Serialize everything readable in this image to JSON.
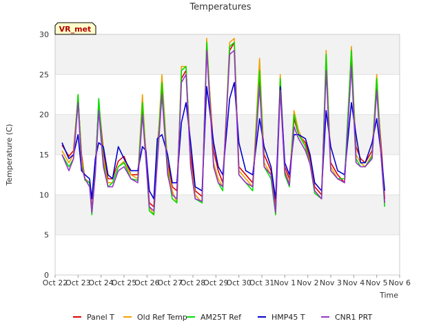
{
  "chart_data": {
    "type": "line",
    "title": "Temperatures",
    "xlabel": "Time",
    "ylabel": "Temperature (C)",
    "badge": "VR_met",
    "ylim": [
      0,
      30
    ],
    "yticks": [
      0,
      5,
      10,
      15,
      20,
      25,
      30
    ],
    "xlim": [
      0,
      15
    ],
    "x_tick_values": [
      0,
      1,
      2,
      3,
      4,
      5,
      6,
      7,
      8,
      9,
      10,
      11,
      12,
      13,
      14,
      15
    ],
    "x_tick_labels": [
      "Oct 22",
      "Oct 23",
      "Oct 24",
      "Oct 25",
      "Oct 26",
      "Oct 27",
      "Oct 28",
      "Oct 29",
      "Oct 30",
      "Oct 31",
      "Nov 1",
      "Nov 2",
      "Nov 3",
      "Nov 4",
      "Nov 5",
      "Nov 6"
    ],
    "grid_bands": true,
    "legend_position": "bottom",
    "x_days": [
      0.3,
      0.6,
      0.8,
      1.0,
      1.15,
      1.3,
      1.5,
      1.6,
      1.75,
      1.9,
      2.1,
      2.3,
      2.5,
      2.75,
      3.0,
      3.3,
      3.6,
      3.8,
      3.95,
      4.1,
      4.3,
      4.45,
      4.65,
      4.9,
      5.1,
      5.3,
      5.5,
      5.7,
      5.9,
      6.1,
      6.4,
      6.6,
      6.9,
      7.1,
      7.3,
      7.6,
      7.8,
      8.0,
      8.3,
      8.6,
      8.9,
      9.1,
      9.4,
      9.6,
      9.8,
      10.0,
      10.2,
      10.4,
      10.6,
      10.9,
      11.1,
      11.3,
      11.6,
      11.8,
      12.0,
      12.3,
      12.6,
      12.9,
      13.1,
      13.3,
      13.5,
      13.8,
      14.0,
      14.2,
      14.35
    ],
    "series": [
      {
        "name": "Panel T",
        "color": "#dd0000",
        "values": [
          16.2,
          14.8,
          15.5,
          22.2,
          15.0,
          12.0,
          11.5,
          8.2,
          13.5,
          21.5,
          15.5,
          12.0,
          12.0,
          14.2,
          14.8,
          12.5,
          12.5,
          21.0,
          15.5,
          9.0,
          8.5,
          16.0,
          23.0,
          14.0,
          11.0,
          10.5,
          24.5,
          25.5,
          15.0,
          10.5,
          9.8,
          28.5,
          15.5,
          13.0,
          11.5,
          28.0,
          29.0,
          13.5,
          12.5,
          11.5,
          24.5,
          15.0,
          13.0,
          8.5,
          24.0,
          13.5,
          12.0,
          19.5,
          17.5,
          16.5,
          14.5,
          11.0,
          10.0,
          26.5,
          14.0,
          12.5,
          11.5,
          26.5,
          16.0,
          14.5,
          14.0,
          15.5,
          23.5,
          16.0,
          9.5
        ]
      },
      {
        "name": "Old Ref Temp",
        "color": "#f0a000",
        "values": [
          15.5,
          14.0,
          15.0,
          22.5,
          14.5,
          12.0,
          11.5,
          7.8,
          13.0,
          21.5,
          14.5,
          11.5,
          11.5,
          13.5,
          14.2,
          12.5,
          12.0,
          22.5,
          15.0,
          8.5,
          7.5,
          15.0,
          25.0,
          13.5,
          10.5,
          9.0,
          26.0,
          26.0,
          14.0,
          10.0,
          9.0,
          29.5,
          14.0,
          12.0,
          11.0,
          29.0,
          29.5,
          13.0,
          12.0,
          11.0,
          27.0,
          14.0,
          12.5,
          8.0,
          25.0,
          13.0,
          11.5,
          20.5,
          18.0,
          16.0,
          14.0,
          10.5,
          9.5,
          28.0,
          13.5,
          12.0,
          11.5,
          28.5,
          15.0,
          14.0,
          13.5,
          15.0,
          25.0,
          15.0,
          9.0
        ]
      },
      {
        "name": "AM25T Ref",
        "color": "#00dd00",
        "values": [
          15.0,
          13.5,
          14.5,
          22.5,
          14.0,
          11.8,
          11.5,
          7.5,
          13.0,
          22.0,
          14.0,
          11.0,
          11.5,
          13.5,
          14.0,
          12.0,
          11.8,
          21.5,
          14.5,
          8.0,
          7.5,
          14.5,
          24.0,
          13.0,
          9.5,
          9.0,
          25.5,
          26.0,
          13.5,
          9.5,
          9.0,
          29.0,
          13.5,
          11.5,
          10.5,
          28.5,
          29.0,
          12.5,
          11.5,
          10.5,
          25.5,
          13.5,
          12.0,
          7.5,
          24.5,
          12.5,
          11.0,
          20.0,
          17.5,
          16.0,
          13.8,
          10.2,
          9.5,
          27.5,
          13.0,
          12.0,
          12.0,
          28.0,
          14.5,
          13.5,
          13.5,
          14.8,
          24.5,
          14.5,
          8.5
        ]
      },
      {
        "name": "HMP45 T",
        "color": "#0000cc",
        "values": [
          16.5,
          14.5,
          15.0,
          17.5,
          13.0,
          12.5,
          12.0,
          9.5,
          14.5,
          16.5,
          16.0,
          12.5,
          12.0,
          16.0,
          14.5,
          13.0,
          13.0,
          16.0,
          15.5,
          10.5,
          9.5,
          17.0,
          17.5,
          15.0,
          11.5,
          11.5,
          19.0,
          21.5,
          16.5,
          11.0,
          10.5,
          23.5,
          16.5,
          13.5,
          12.5,
          22.0,
          24.0,
          16.5,
          13.0,
          12.5,
          19.5,
          16.0,
          13.5,
          9.5,
          23.5,
          14.0,
          12.5,
          17.5,
          17.5,
          17.0,
          15.0,
          11.5,
          10.5,
          20.5,
          16.0,
          13.0,
          12.5,
          21.5,
          17.5,
          14.0,
          14.0,
          16.5,
          19.5,
          15.0,
          10.5
        ]
      },
      {
        "name": "CNR1 PRT",
        "color": "#9933cc",
        "values": [
          15.0,
          13.0,
          14.5,
          21.5,
          13.5,
          12.0,
          11.0,
          7.8,
          12.5,
          20.5,
          13.5,
          11.0,
          11.0,
          13.0,
          13.5,
          12.0,
          11.5,
          20.0,
          14.5,
          8.5,
          8.0,
          14.0,
          22.5,
          12.5,
          10.0,
          9.5,
          24.0,
          25.0,
          13.5,
          9.5,
          9.2,
          28.0,
          13.5,
          11.5,
          11.0,
          27.5,
          28.0,
          12.5,
          11.5,
          11.0,
          23.5,
          13.5,
          12.5,
          7.8,
          23.0,
          12.8,
          11.2,
          18.5,
          17.0,
          15.5,
          13.8,
          10.5,
          9.5,
          25.5,
          13.0,
          12.0,
          11.5,
          26.0,
          14.0,
          13.5,
          13.5,
          14.5,
          23.0,
          14.5,
          9.0
        ]
      }
    ]
  }
}
